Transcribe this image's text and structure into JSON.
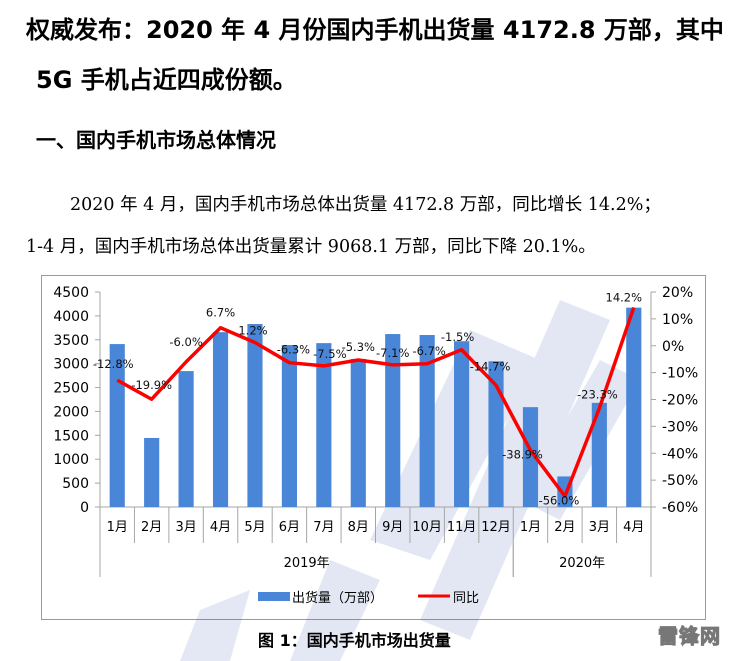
{
  "article": {
    "headline_line1": "权威发布：2020 年 4 月份国内手机出货量 4172.8 万部，其中",
    "headline_line2": "5G 手机占近四成份额。",
    "section_title": "一、国内手机市场总体情况",
    "paragraph_line1": "2020 年 4 月，国内手机市场总体出货量 4172.8 万部，同比增长 14.2%；",
    "paragraph_line2": "1-4 月，国内手机市场总体出货量累计 9068.1 万部，同比下降 20.1%。",
    "figure_caption": "图 1：国内手机市场出货量",
    "watermark_brand": "雷锋网"
  },
  "colors": {
    "bar": "#4A86D8",
    "line": "#FF0000",
    "axis": "#A6A6A6",
    "frame": "#9A9A9A"
  },
  "chart_data": {
    "type": "bar",
    "title": "图 1：国内手机市场出货量",
    "xlabel": "",
    "ylabel": "",
    "categories": [
      "1月",
      "2月",
      "3月",
      "4月",
      "5月",
      "6月",
      "7月",
      "8月",
      "9月",
      "10月",
      "11月",
      "12月",
      "1月",
      "2月",
      "3月",
      "4月"
    ],
    "category_groups": [
      {
        "label": "2019年",
        "span": 12
      },
      {
        "label": "2020年",
        "span": 4
      }
    ],
    "series": [
      {
        "name": "出货量（万部）",
        "type": "bar",
        "axis": "left",
        "values": [
          3410,
          1445,
          2845,
          3660,
          3830,
          3390,
          3430,
          3100,
          3620,
          3600,
          3470,
          3050,
          2090,
          640,
          2180,
          4172.8
        ]
      },
      {
        "name": "同比",
        "type": "line",
        "axis": "right",
        "values": [
          -12.8,
          -19.9,
          -6.0,
          6.7,
          1.2,
          -6.3,
          -7.5,
          -5.3,
          -7.1,
          -6.7,
          -1.5,
          -14.7,
          -38.9,
          -56.0,
          -23.3,
          14.2
        ],
        "labels": [
          "-12.8%",
          "-19.9%",
          "-6.0%",
          "6.7%",
          "1.2%",
          "-6.3%",
          "-7.5%",
          "-5.3%",
          "-7.1%",
          "-6.7%",
          "-1.5%",
          "-14.7%",
          "-38.9%",
          "-56.0%",
          "-23.3%",
          "14.2%"
        ]
      }
    ],
    "ylim": [
      0,
      4500
    ],
    "y_ticks": [
      "0",
      "500",
      "1000",
      "1500",
      "2000",
      "2500",
      "3000",
      "3500",
      "4000",
      "4500"
    ],
    "y2lim": [
      -60,
      20
    ],
    "y2_ticks": [
      "-60%",
      "-50%",
      "-40%",
      "-30%",
      "-20%",
      "-10%",
      "0%",
      "10%",
      "20%"
    ],
    "legend": [
      {
        "label": "出货量（万部）",
        "marker": "bar"
      },
      {
        "label": "同比",
        "marker": "line"
      }
    ],
    "legend_position": "bottom",
    "grid": false
  }
}
